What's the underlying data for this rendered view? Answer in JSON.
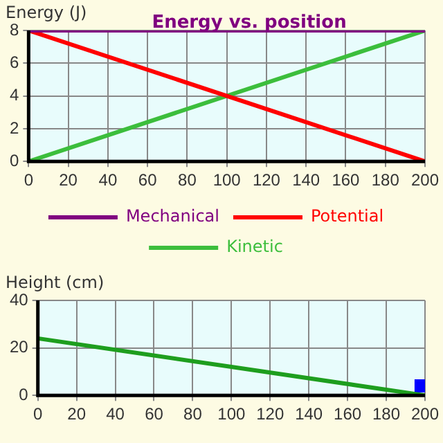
{
  "chart_data": [
    {
      "type": "line",
      "title": "Energy vs. position",
      "ylabel": "Energy (J)",
      "x": [
        0,
        200
      ],
      "xlim": [
        0,
        200
      ],
      "xticks": [
        0,
        20,
        40,
        60,
        80,
        100,
        120,
        140,
        160,
        180,
        200
      ],
      "ylim": [
        0,
        8
      ],
      "yticks": [
        0,
        2,
        4,
        6,
        8
      ],
      "grid": true,
      "legend": "bottom",
      "marker": "none",
      "series": [
        {
          "name": "Mechanical",
          "color": "#800080",
          "values": [
            8,
            8
          ]
        },
        {
          "name": "Potential",
          "color": "#ff0000",
          "values": [
            8,
            0
          ]
        },
        {
          "name": "Kinetic",
          "color": "#3cbe3c",
          "values": [
            0,
            8
          ]
        }
      ]
    },
    {
      "type": "line",
      "ylabel": "Height (cm)",
      "x": [
        0,
        100,
        200
      ],
      "xlim": [
        0,
        200
      ],
      "xticks": [
        0,
        20,
        40,
        60,
        80,
        100,
        120,
        140,
        160,
        180,
        200
      ],
      "ylim": [
        0,
        40
      ],
      "yticks": [
        0,
        20,
        40
      ],
      "grid": true,
      "marker": "none",
      "series": [
        {
          "color": "#1e9e1e",
          "values": [
            24,
            12,
            0
          ]
        },
        {
          "type": "scatter",
          "color": "#0000ff",
          "marker": "square",
          "x": [
            198
          ],
          "values": [
            4
          ]
        }
      ]
    }
  ]
}
